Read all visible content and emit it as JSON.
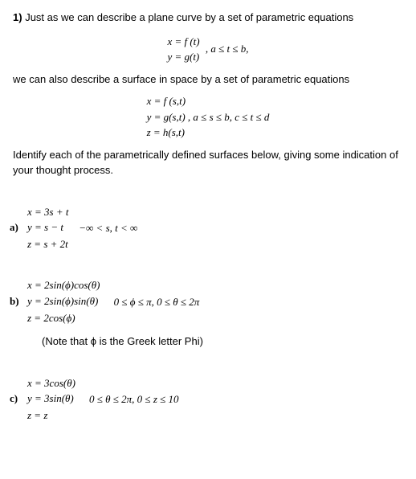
{
  "question_number": "1)",
  "intro_text": "Just as we can describe a plane curve by a set of parametric equations",
  "eq1_line1": "x = f (t)",
  "eq1_line2": "y = g(t)",
  "eq1_domain": ",   a ≤ t ≤ b,",
  "intro_text2": "we can also describe a surface in space by a set of parametric equations",
  "eq2_line1": "x = f (s,t)",
  "eq2_line2": "y = g(s,t) ,   a ≤ s ≤ b,  c ≤ t ≤ d",
  "eq2_line3": "z = h(s,t)",
  "instruction": "Identify each of the parametrically defined surfaces below, giving some indication of your thought process.",
  "part_a": {
    "label": "a)",
    "eq1": "x = 3s + t",
    "eq2": "y = s − t",
    "eq3": "z = s + 2t",
    "domain": "−∞ < s, t < ∞"
  },
  "part_b": {
    "label": "b)",
    "eq1": "x = 2sin(ϕ)cos(θ)",
    "eq2": "y = 2sin(ϕ)sin(θ)",
    "eq3": "z = 2cos(ϕ)",
    "domain": "0 ≤ ϕ ≤ π,  0 ≤ θ ≤ 2π",
    "note": "(Note that ϕ is the Greek letter Phi)"
  },
  "part_c": {
    "label": "c)",
    "eq1": "x = 3cos(θ)",
    "eq2": "y = 3sin(θ)",
    "eq3": "z = z",
    "domain": "0 ≤ θ ≤ 2π,  0 ≤ z ≤ 10"
  }
}
